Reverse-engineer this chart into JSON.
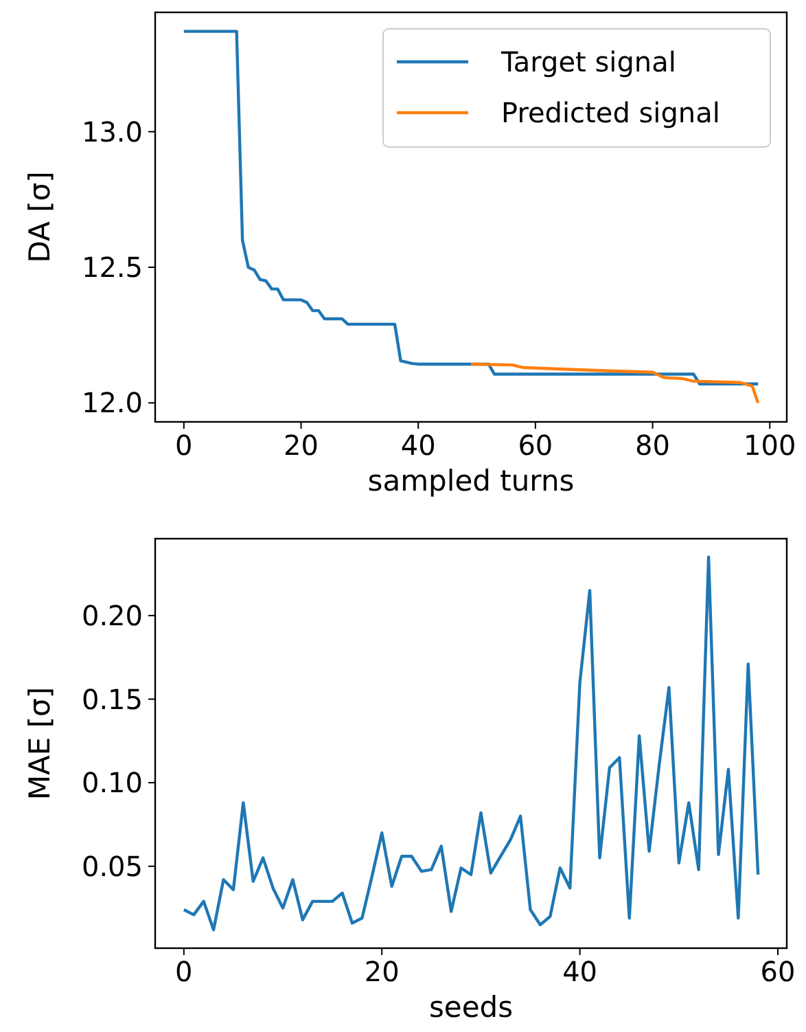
{
  "chart_data": [
    {
      "type": "line",
      "xlabel": "sampled turns",
      "ylabel": "DA [σ]",
      "xlim": [
        -4.9,
        102.9
      ],
      "ylim": [
        11.93,
        13.44
      ],
      "xticks": [
        0,
        20,
        40,
        60,
        80,
        100
      ],
      "yticks": [
        {
          "value": 12,
          "label": "12.0"
        },
        {
          "value": 12.5,
          "label": "12.5"
        },
        {
          "value": 13,
          "label": "13.0"
        }
      ],
      "legend": "top right",
      "grid": false,
      "series": [
        {
          "name": "Target signal",
          "color": "#1f77b4",
          "x": [
            0,
            9,
            10,
            11,
            12,
            13,
            14,
            15,
            16,
            17,
            20,
            21,
            22,
            23,
            24,
            27,
            28,
            36,
            37,
            38,
            39,
            40,
            52,
            53,
            87,
            88,
            98
          ],
          "values": [
            13.37,
            13.37,
            12.6,
            12.5,
            12.49,
            12.455,
            12.45,
            12.42,
            12.42,
            12.38,
            12.38,
            12.37,
            12.34,
            12.34,
            12.31,
            12.31,
            12.29,
            12.29,
            12.155,
            12.15,
            12.145,
            12.143,
            12.143,
            12.106,
            12.106,
            12.07,
            12.07
          ]
        },
        {
          "name": "Predicted signal",
          "color": "#ff7f0e",
          "x": [
            49,
            56,
            58,
            70,
            80,
            82,
            85,
            87,
            95,
            97,
            98
          ],
          "values": [
            12.143,
            12.14,
            12.13,
            12.12,
            12.113,
            12.093,
            12.09,
            12.08,
            12.075,
            12.062,
            12.0
          ]
        }
      ]
    },
    {
      "type": "line",
      "xlabel": "seeds",
      "ylabel": "MAE [σ]",
      "xlim": [
        -2.9,
        60.9
      ],
      "ylim": [
        0.001,
        0.246
      ],
      "xticks": [
        0,
        20,
        40,
        60
      ],
      "yticks": [
        {
          "value": 0.05,
          "label": "0.05"
        },
        {
          "value": 0.1,
          "label": "0.10"
        },
        {
          "value": 0.15,
          "label": "0.15"
        },
        {
          "value": 0.2,
          "label": "0.20"
        }
      ],
      "grid": false,
      "series": [
        {
          "color": "#1f77b4",
          "x": [
            0,
            1,
            2,
            3,
            4,
            5,
            6,
            7,
            8,
            9,
            10,
            11,
            12,
            13,
            14,
            15,
            16,
            17,
            18,
            19,
            20,
            21,
            22,
            23,
            24,
            25,
            26,
            27,
            28,
            29,
            30,
            31,
            32,
            33,
            34,
            35,
            36,
            37,
            38,
            39,
            40,
            41,
            42,
            43,
            44,
            45,
            46,
            47,
            48,
            49,
            50,
            51,
            52,
            53,
            54,
            55,
            56,
            57,
            58
          ],
          "values": [
            0.024,
            0.021,
            0.029,
            0.012,
            0.042,
            0.036,
            0.088,
            0.041,
            0.055,
            0.037,
            0.025,
            0.042,
            0.018,
            0.029,
            0.029,
            0.029,
            0.034,
            0.016,
            0.019,
            0.044,
            0.07,
            0.038,
            0.056,
            0.056,
            0.047,
            0.048,
            0.062,
            0.023,
            0.049,
            0.045,
            0.082,
            0.046,
            0.056,
            0.066,
            0.08,
            0.024,
            0.015,
            0.02,
            0.049,
            0.037,
            0.16,
            0.215,
            0.055,
            0.109,
            0.115,
            0.019,
            0.128,
            0.059,
            0.11,
            0.157,
            0.052,
            0.088,
            0.048,
            0.235,
            0.057,
            0.108,
            0.019,
            0.171,
            0.045
          ]
        }
      ]
    }
  ]
}
